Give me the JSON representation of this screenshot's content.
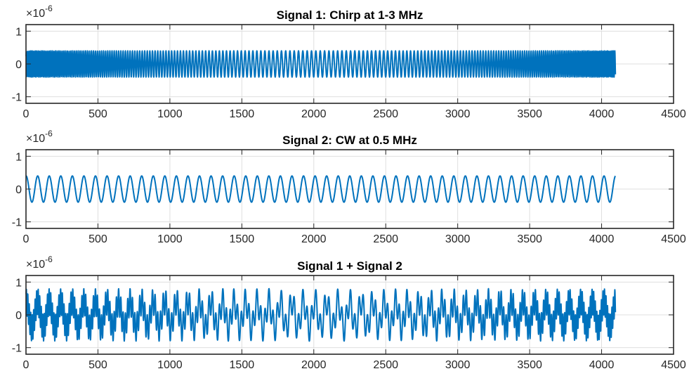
{
  "chart_data": [
    {
      "type": "line",
      "title": "Signal 1: Chirp at 1-3 MHz",
      "y_exponent": "10",
      "y_exponent_power": "-6",
      "y_exponent_prefix": "×",
      "xlim": [
        0,
        4500
      ],
      "ylim": [
        -1.2,
        1.2
      ],
      "xticks": [
        "0",
        "500",
        "1000",
        "1500",
        "2000",
        "2500",
        "3000",
        "3500",
        "4000",
        "4500"
      ],
      "yticks": [
        "-1",
        "0",
        "1"
      ],
      "grid": true,
      "color": "#0072BD",
      "series": [
        {
          "n_samples": 4096,
          "amplitude": 0.4,
          "signal": "chirp",
          "freq_start_cycles_per_sample": 0.1,
          "freq_min_cycles_per_sample": 0.033,
          "freq_end_cycles_per_sample": 0.1,
          "freq_min_at_sample": 2048
        }
      ]
    },
    {
      "type": "line",
      "title": "Signal 2: CW at 0.5 MHz",
      "y_exponent": "10",
      "y_exponent_power": "-6",
      "y_exponent_prefix": "×",
      "xlim": [
        0,
        4500
      ],
      "ylim": [
        -1.2,
        1.2
      ],
      "xticks": [
        "0",
        "500",
        "1000",
        "1500",
        "2000",
        "2500",
        "3000",
        "3500",
        "4000",
        "4500"
      ],
      "yticks": [
        "-1",
        "0",
        "1"
      ],
      "grid": true,
      "color": "#0072BD",
      "series": [
        {
          "n_samples": 4096,
          "amplitude": 0.4,
          "signal": "cw",
          "freq_cycles_per_sample": 0.01245,
          "phase_deg": 90
        }
      ]
    },
    {
      "type": "line",
      "title": "Signal 1 + Signal 2",
      "y_exponent": "10",
      "y_exponent_power": "-6",
      "y_exponent_prefix": "×",
      "xlim": [
        0,
        4500
      ],
      "ylim": [
        -1.2,
        1.2
      ],
      "xticks": [
        "0",
        "500",
        "1000",
        "1500",
        "2000",
        "2500",
        "3000",
        "3500",
        "4000",
        "4500"
      ],
      "yticks": [
        "-1",
        "0",
        "1"
      ],
      "grid": true,
      "color": "#0072BD",
      "series": [
        {
          "n_samples": 4096,
          "signal": "sum",
          "amplitude_peak": 0.8
        }
      ]
    }
  ]
}
